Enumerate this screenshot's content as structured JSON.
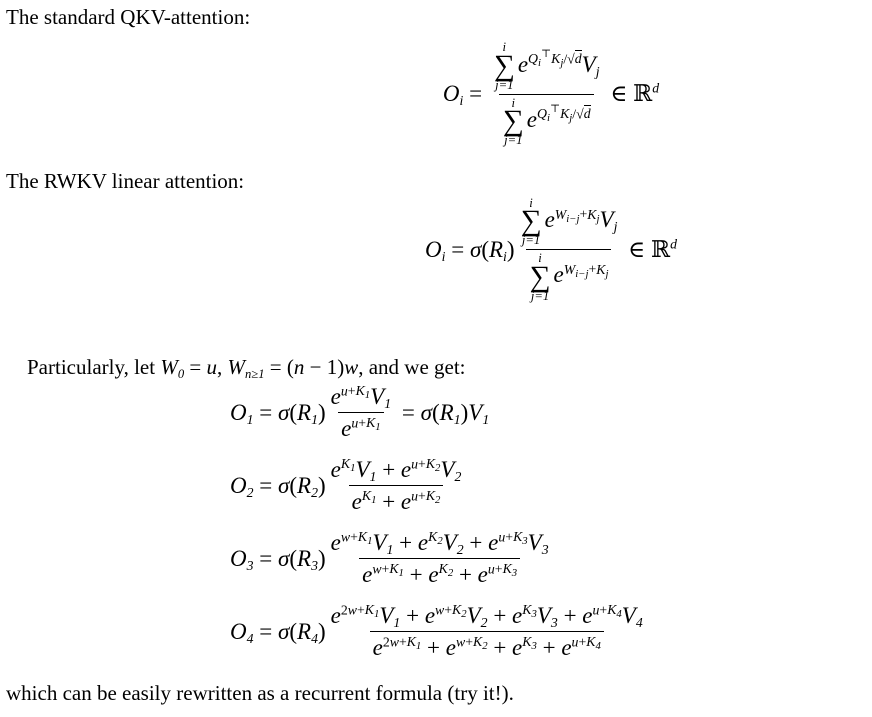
{
  "colors": {
    "background": "#ffffff",
    "text": "#000000"
  },
  "paragraphs": {
    "p1": "The standard QKV-attention:",
    "p2": "The RWKV linear attention:",
    "p3_prefix": "Particularly, let ",
    "p3_suffix": ", and we get:",
    "p4": "which can be easily rewritten as a recurrent formula (try it!)."
  },
  "equations": {
    "qkv": [
      {
        "v": "O",
        "sub": "i"
      },
      {
        "v": " = ",
        "cls": "rm"
      },
      {
        "t": "frac",
        "num": [
          {
            "t": "sum",
            "top": "i",
            "bot": "j=1"
          },
          {
            "v": "e",
            "sup": [
              {
                "v": "Q",
                "sub": "i",
                "sup": "⊤"
              },
              {
                "v": "K",
                "sub": "j"
              },
              {
                "v": "/",
                "cls": "rm"
              },
              {
                "t": "sqrt",
                "arg": "d"
              }
            ]
          },
          {
            "v": "V",
            "sub": "j"
          }
        ],
        "den": [
          {
            "t": "sum",
            "top": "i",
            "bot": "j=1"
          },
          {
            "v": "e",
            "sup": [
              {
                "v": "Q",
                "sub": "i",
                "sup": "⊤"
              },
              {
                "v": "K",
                "sub": "j"
              },
              {
                "v": "/",
                "cls": "rm"
              },
              {
                "t": "sqrt",
                "arg": "d"
              }
            ]
          }
        ]
      },
      {
        "v": " ∈ ",
        "cls": "rm"
      },
      {
        "v": "ℝ",
        "cls": "rm",
        "sup": "d"
      }
    ],
    "rwkv": [
      {
        "v": "O",
        "sub": "i"
      },
      {
        "v": " = ",
        "cls": "rm"
      },
      {
        "v": "σ"
      },
      {
        "v": "(",
        "cls": "rm"
      },
      {
        "v": "R",
        "sub": "i"
      },
      {
        "v": ")",
        "cls": "rm"
      },
      {
        "t": "frac",
        "num": [
          {
            "t": "sum",
            "top": "i",
            "bot": "j=1"
          },
          {
            "v": "e",
            "sup": [
              {
                "v": "W",
                "sub": "i−j"
              },
              {
                "v": "+",
                "cls": "rm"
              },
              {
                "v": "K",
                "sub": "j"
              }
            ]
          },
          {
            "v": "V",
            "sub": "j"
          }
        ],
        "den": [
          {
            "t": "sum",
            "top": "i",
            "bot": "j=1"
          },
          {
            "v": "e",
            "sup": [
              {
                "v": "W",
                "sub": "i−j"
              },
              {
                "v": "+",
                "cls": "rm"
              },
              {
                "v": "K",
                "sub": "j"
              }
            ]
          }
        ]
      },
      {
        "v": " ∈ ",
        "cls": "rm"
      },
      {
        "v": "ℝ",
        "cls": "rm",
        "sup": "d"
      }
    ],
    "w_def": [
      {
        "v": "W",
        "sub": "0"
      },
      {
        "v": " = ",
        "cls": "rm"
      },
      {
        "v": "u"
      },
      {
        "v": ", ",
        "cls": "rm"
      },
      {
        "v": "W",
        "sub": "n≥1"
      },
      {
        "v": " = ",
        "cls": "rm"
      },
      {
        "v": "(",
        "cls": "rm"
      },
      {
        "v": "n"
      },
      {
        "v": " − ",
        "cls": "rm"
      },
      {
        "v": "1",
        "cls": "rm"
      },
      {
        "v": ")",
        "cls": "rm"
      },
      {
        "v": "w"
      }
    ],
    "expansion": [
      [
        {
          "v": "O",
          "sub": "1"
        },
        {
          "v": " = ",
          "cls": "rm"
        },
        {
          "v": "σ"
        },
        {
          "v": "(",
          "cls": "rm"
        },
        {
          "v": "R",
          "sub": "1"
        },
        {
          "v": ")",
          "cls": "rm"
        },
        {
          "t": "frac",
          "num": [
            {
              "v": "e",
              "sup": [
                {
                  "v": "u"
                },
                {
                  "v": "+",
                  "cls": "rm"
                },
                {
                  "v": "K",
                  "sub": "1"
                }
              ]
            },
            {
              "v": "V",
              "sub": "1"
            }
          ],
          "den": [
            {
              "v": "e",
              "sup": [
                {
                  "v": "u"
                },
                {
                  "v": "+",
                  "cls": "rm"
                },
                {
                  "v": "K",
                  "sub": "1"
                }
              ]
            }
          ]
        },
        {
          "v": " = ",
          "cls": "rm"
        },
        {
          "v": "σ"
        },
        {
          "v": "(",
          "cls": "rm"
        },
        {
          "v": "R",
          "sub": "1"
        },
        {
          "v": ")",
          "cls": "rm"
        },
        {
          "v": "V",
          "sub": "1"
        }
      ],
      [
        {
          "v": "O",
          "sub": "2"
        },
        {
          "v": " = ",
          "cls": "rm"
        },
        {
          "v": "σ"
        },
        {
          "v": "(",
          "cls": "rm"
        },
        {
          "v": "R",
          "sub": "2"
        },
        {
          "v": ")",
          "cls": "rm"
        },
        {
          "t": "frac",
          "num": [
            {
              "v": "e",
              "sup": [
                {
                  "v": "K",
                  "sub": "1"
                }
              ]
            },
            {
              "v": "V",
              "sub": "1"
            },
            {
              "v": " + ",
              "cls": "rm"
            },
            {
              "v": "e",
              "sup": [
                {
                  "v": "u"
                },
                {
                  "v": "+",
                  "cls": "rm"
                },
                {
                  "v": "K",
                  "sub": "2"
                }
              ]
            },
            {
              "v": "V",
              "sub": "2"
            }
          ],
          "den": [
            {
              "v": "e",
              "sup": [
                {
                  "v": "K",
                  "sub": "1"
                }
              ]
            },
            {
              "v": " + ",
              "cls": "rm"
            },
            {
              "v": "e",
              "sup": [
                {
                  "v": "u"
                },
                {
                  "v": "+",
                  "cls": "rm"
                },
                {
                  "v": "K",
                  "sub": "2"
                }
              ]
            }
          ]
        }
      ],
      [
        {
          "v": "O",
          "sub": "3"
        },
        {
          "v": " = ",
          "cls": "rm"
        },
        {
          "v": "σ"
        },
        {
          "v": "(",
          "cls": "rm"
        },
        {
          "v": "R",
          "sub": "3"
        },
        {
          "v": ")",
          "cls": "rm"
        },
        {
          "t": "frac",
          "num": [
            {
              "v": "e",
              "sup": [
                {
                  "v": "w"
                },
                {
                  "v": "+",
                  "cls": "rm"
                },
                {
                  "v": "K",
                  "sub": "1"
                }
              ]
            },
            {
              "v": "V",
              "sub": "1"
            },
            {
              "v": " + ",
              "cls": "rm"
            },
            {
              "v": "e",
              "sup": [
                {
                  "v": "K",
                  "sub": "2"
                }
              ]
            },
            {
              "v": "V",
              "sub": "2"
            },
            {
              "v": " + ",
              "cls": "rm"
            },
            {
              "v": "e",
              "sup": [
                {
                  "v": "u"
                },
                {
                  "v": "+",
                  "cls": "rm"
                },
                {
                  "v": "K",
                  "sub": "3"
                }
              ]
            },
            {
              "v": "V",
              "sub": "3"
            }
          ],
          "den": [
            {
              "v": "e",
              "sup": [
                {
                  "v": "w"
                },
                {
                  "v": "+",
                  "cls": "rm"
                },
                {
                  "v": "K",
                  "sub": "1"
                }
              ]
            },
            {
              "v": " + ",
              "cls": "rm"
            },
            {
              "v": "e",
              "sup": [
                {
                  "v": "K",
                  "sub": "2"
                }
              ]
            },
            {
              "v": " + ",
              "cls": "rm"
            },
            {
              "v": "e",
              "sup": [
                {
                  "v": "u"
                },
                {
                  "v": "+",
                  "cls": "rm"
                },
                {
                  "v": "K",
                  "sub": "3"
                }
              ]
            }
          ]
        }
      ],
      [
        {
          "v": "O",
          "sub": "4"
        },
        {
          "v": " = ",
          "cls": "rm"
        },
        {
          "v": "σ"
        },
        {
          "v": "(",
          "cls": "rm"
        },
        {
          "v": "R",
          "sub": "4"
        },
        {
          "v": ")",
          "cls": "rm"
        },
        {
          "t": "frac",
          "num": [
            {
              "v": "e",
              "sup": [
                {
                  "v": "2",
                  "cls": "rm"
                },
                {
                  "v": "w"
                },
                {
                  "v": "+",
                  "cls": "rm"
                },
                {
                  "v": "K",
                  "sub": "1"
                }
              ]
            },
            {
              "v": "V",
              "sub": "1"
            },
            {
              "v": " + ",
              "cls": "rm"
            },
            {
              "v": "e",
              "sup": [
                {
                  "v": "w"
                },
                {
                  "v": "+",
                  "cls": "rm"
                },
                {
                  "v": "K",
                  "sub": "2"
                }
              ]
            },
            {
              "v": "V",
              "sub": "2"
            },
            {
              "v": " + ",
              "cls": "rm"
            },
            {
              "v": "e",
              "sup": [
                {
                  "v": "K",
                  "sub": "3"
                }
              ]
            },
            {
              "v": "V",
              "sub": "3"
            },
            {
              "v": " + ",
              "cls": "rm"
            },
            {
              "v": "e",
              "sup": [
                {
                  "v": "u"
                },
                {
                  "v": "+",
                  "cls": "rm"
                },
                {
                  "v": "K",
                  "sub": "4"
                }
              ]
            },
            {
              "v": "V",
              "sub": "4"
            }
          ],
          "den": [
            {
              "v": "e",
              "sup": [
                {
                  "v": "2",
                  "cls": "rm"
                },
                {
                  "v": "w"
                },
                {
                  "v": "+",
                  "cls": "rm"
                },
                {
                  "v": "K",
                  "sub": "1"
                }
              ]
            },
            {
              "v": " + ",
              "cls": "rm"
            },
            {
              "v": "e",
              "sup": [
                {
                  "v": "w"
                },
                {
                  "v": "+",
                  "cls": "rm"
                },
                {
                  "v": "K",
                  "sub": "2"
                }
              ]
            },
            {
              "v": " + ",
              "cls": "rm"
            },
            {
              "v": "e",
              "sup": [
                {
                  "v": "K",
                  "sub": "3"
                }
              ]
            },
            {
              "v": " + ",
              "cls": "rm"
            },
            {
              "v": "e",
              "sup": [
                {
                  "v": "u"
                },
                {
                  "v": "+",
                  "cls": "rm"
                },
                {
                  "v": "K",
                  "sub": "4"
                }
              ]
            }
          ]
        }
      ]
    ]
  }
}
